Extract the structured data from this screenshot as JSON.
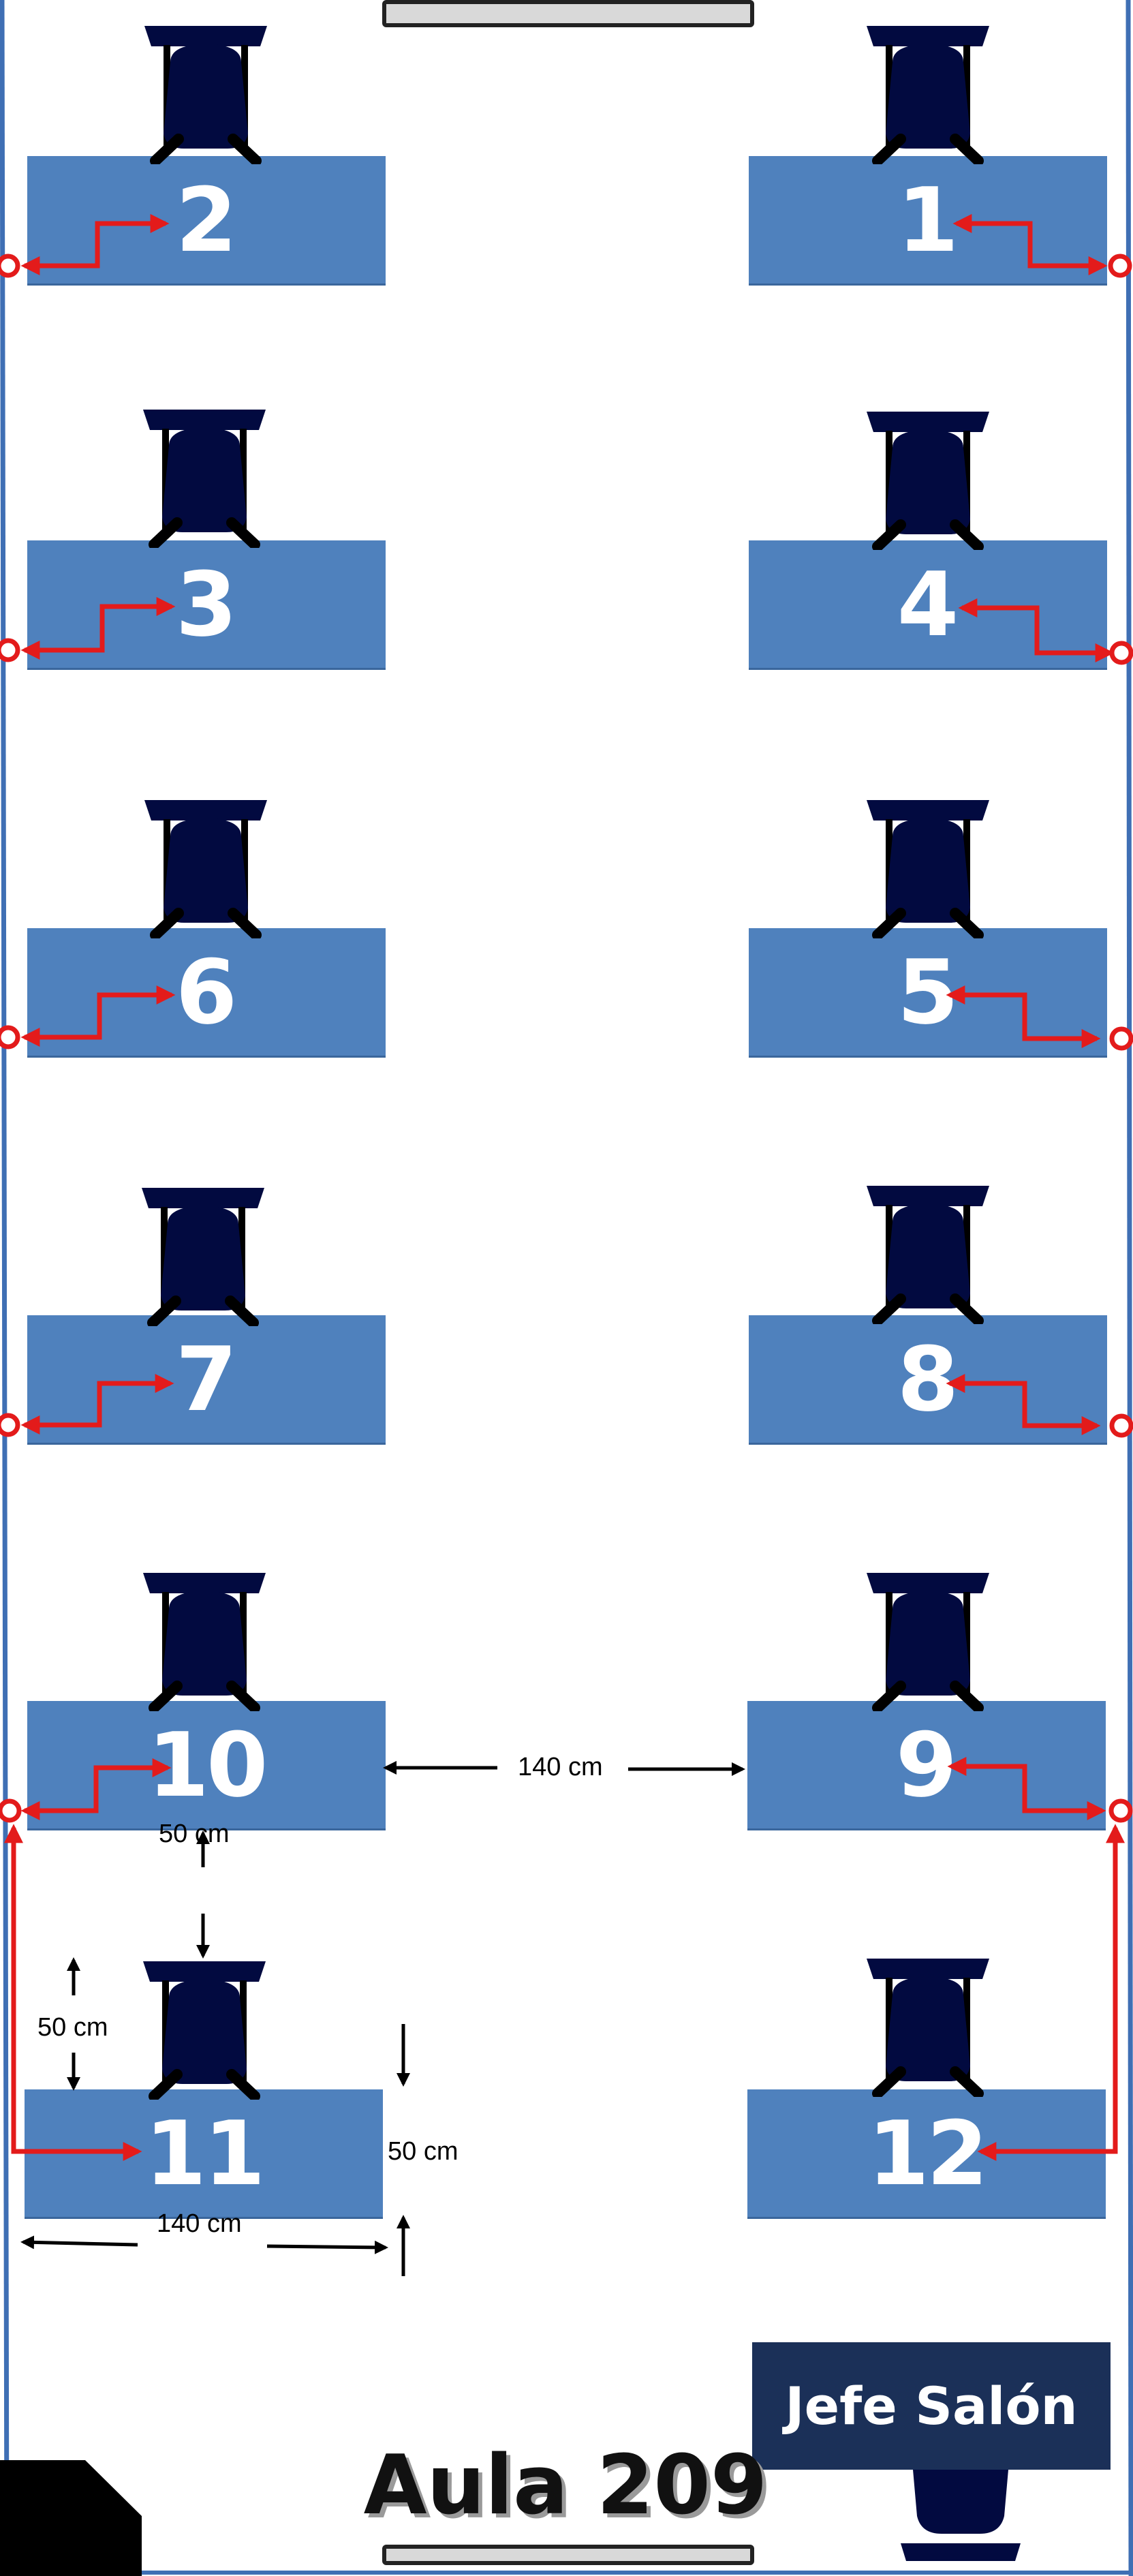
{
  "room": {
    "title": "Aula 209",
    "teacher_desk_label": "Jefe Salón"
  },
  "colors": {
    "desk": "#4f81bd",
    "chair": "#020a40",
    "route": "#e31b1b",
    "teacher_desk": "#1b3058",
    "wall": "#3f6fb4"
  },
  "icons": {
    "chair": "office-chair-icon",
    "outlet": "red-ring-outlet-icon",
    "route": "red-elbow-arrow-icon"
  },
  "desks": [
    {
      "label": "2"
    },
    {
      "label": "1"
    },
    {
      "label": "3"
    },
    {
      "label": "4"
    },
    {
      "label": "6"
    },
    {
      "label": "5"
    },
    {
      "label": "7"
    },
    {
      "label": "8"
    },
    {
      "label": "10"
    },
    {
      "label": "9"
    },
    {
      "label": "11"
    },
    {
      "label": "12"
    }
  ],
  "dimensions": {
    "aisle_width": "140 cm",
    "row_gap": "50 cm",
    "chair_depth": "50 cm",
    "desk_depth": "50 cm",
    "desk_width": "140 cm"
  }
}
